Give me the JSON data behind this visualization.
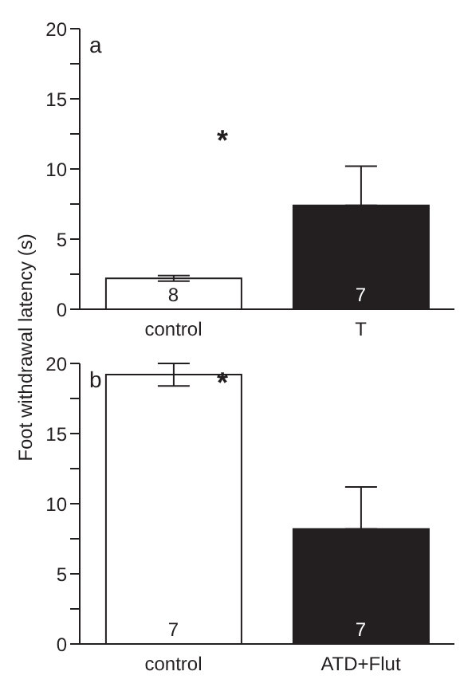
{
  "chart_data": [
    {
      "type": "bar",
      "title": "a",
      "ylabel": "Foot withdrawal latency (s)",
      "categories": [
        "control",
        "T"
      ],
      "values": [
        2.2,
        7.4
      ],
      "colors": [
        "#ffffff",
        "#231f20"
      ],
      "errors": [
        0.2,
        [
          7.4,
          10.2
        ]
      ],
      "ylim": [
        0,
        20
      ],
      "yticks": [
        0,
        {
          "value": 2.5,
          "label": null
        },
        5,
        {
          "value": 7.5,
          "label": null
        },
        10,
        {
          "value": 12.5,
          "label": null
        },
        15,
        {
          "value": 17.5,
          "label": null
        },
        20
      ],
      "annotations": [
        "*",
        {
          "text": "8",
          "x": "control",
          "y": 0
        },
        {
          "text": "7",
          "x": "T",
          "y": 0
        }
      ]
    },
    {
      "type": "bar",
      "title": "b",
      "categories": [
        "control",
        "ATD+Flut"
      ],
      "values": [
        19.2,
        8.2
      ],
      "colors": [
        "#ffffff",
        "#231f20"
      ],
      "errors": [
        0.8,
        [
          8.2,
          11.2
        ]
      ],
      "ylim": [
        0,
        20
      ],
      "yticks": [
        0,
        {
          "value": 2.5,
          "label": null
        },
        5,
        {
          "value": 7.5,
          "label": null
        },
        10,
        {
          "value": 12.5,
          "label": null
        },
        15,
        {
          "value": 17.5,
          "label": null
        },
        20
      ],
      "annotations": [
        "*",
        {
          "text": "7",
          "x": "control",
          "y": 0
        },
        {
          "text": "7",
          "x": "ATD+Flut",
          "y": 0
        }
      ]
    }
  ]
}
